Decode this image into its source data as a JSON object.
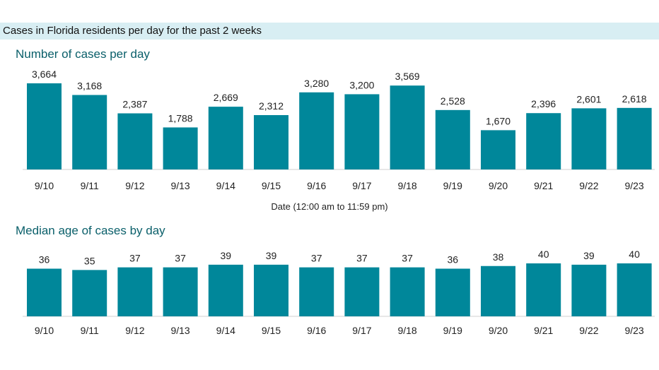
{
  "header": {
    "title": "Cases in Florida residents per day for the past 2 weeks"
  },
  "colors": {
    "bar": "#00879a",
    "header_bg": "#d8eef3",
    "title": "#0a5f6a"
  },
  "chart_data": [
    {
      "type": "bar",
      "title": "Number of cases per day",
      "xlabel": "Date (12:00 am to 11:59 pm)",
      "ylabel": "",
      "categories": [
        "9/10",
        "9/11",
        "9/12",
        "9/13",
        "9/14",
        "9/15",
        "9/16",
        "9/17",
        "9/18",
        "9/19",
        "9/20",
        "9/21",
        "9/22",
        "9/23"
      ],
      "values": [
        3664,
        3168,
        2387,
        1788,
        2669,
        2312,
        3280,
        3200,
        3569,
        2528,
        1670,
        2396,
        2601,
        2618
      ],
      "value_labels": [
        "3,664",
        "3,168",
        "2,387",
        "1,788",
        "2,669",
        "2,312",
        "3,280",
        "3,200",
        "3,569",
        "2,528",
        "1,670",
        "2,396",
        "2,601",
        "2,618"
      ],
      "ylim": [
        0,
        3664
      ]
    },
    {
      "type": "bar",
      "title": "Median age of cases by day",
      "xlabel": "",
      "ylabel": "",
      "categories": [
        "9/10",
        "9/11",
        "9/12",
        "9/13",
        "9/14",
        "9/15",
        "9/16",
        "9/17",
        "9/18",
        "9/19",
        "9/20",
        "9/21",
        "9/22",
        "9/23"
      ],
      "values": [
        36,
        35,
        37,
        37,
        39,
        39,
        37,
        37,
        37,
        36,
        38,
        40,
        39,
        40
      ],
      "value_labels": [
        "36",
        "35",
        "37",
        "37",
        "39",
        "39",
        "37",
        "37",
        "37",
        "36",
        "38",
        "40",
        "39",
        "40"
      ],
      "ylim": [
        0,
        40
      ]
    }
  ]
}
